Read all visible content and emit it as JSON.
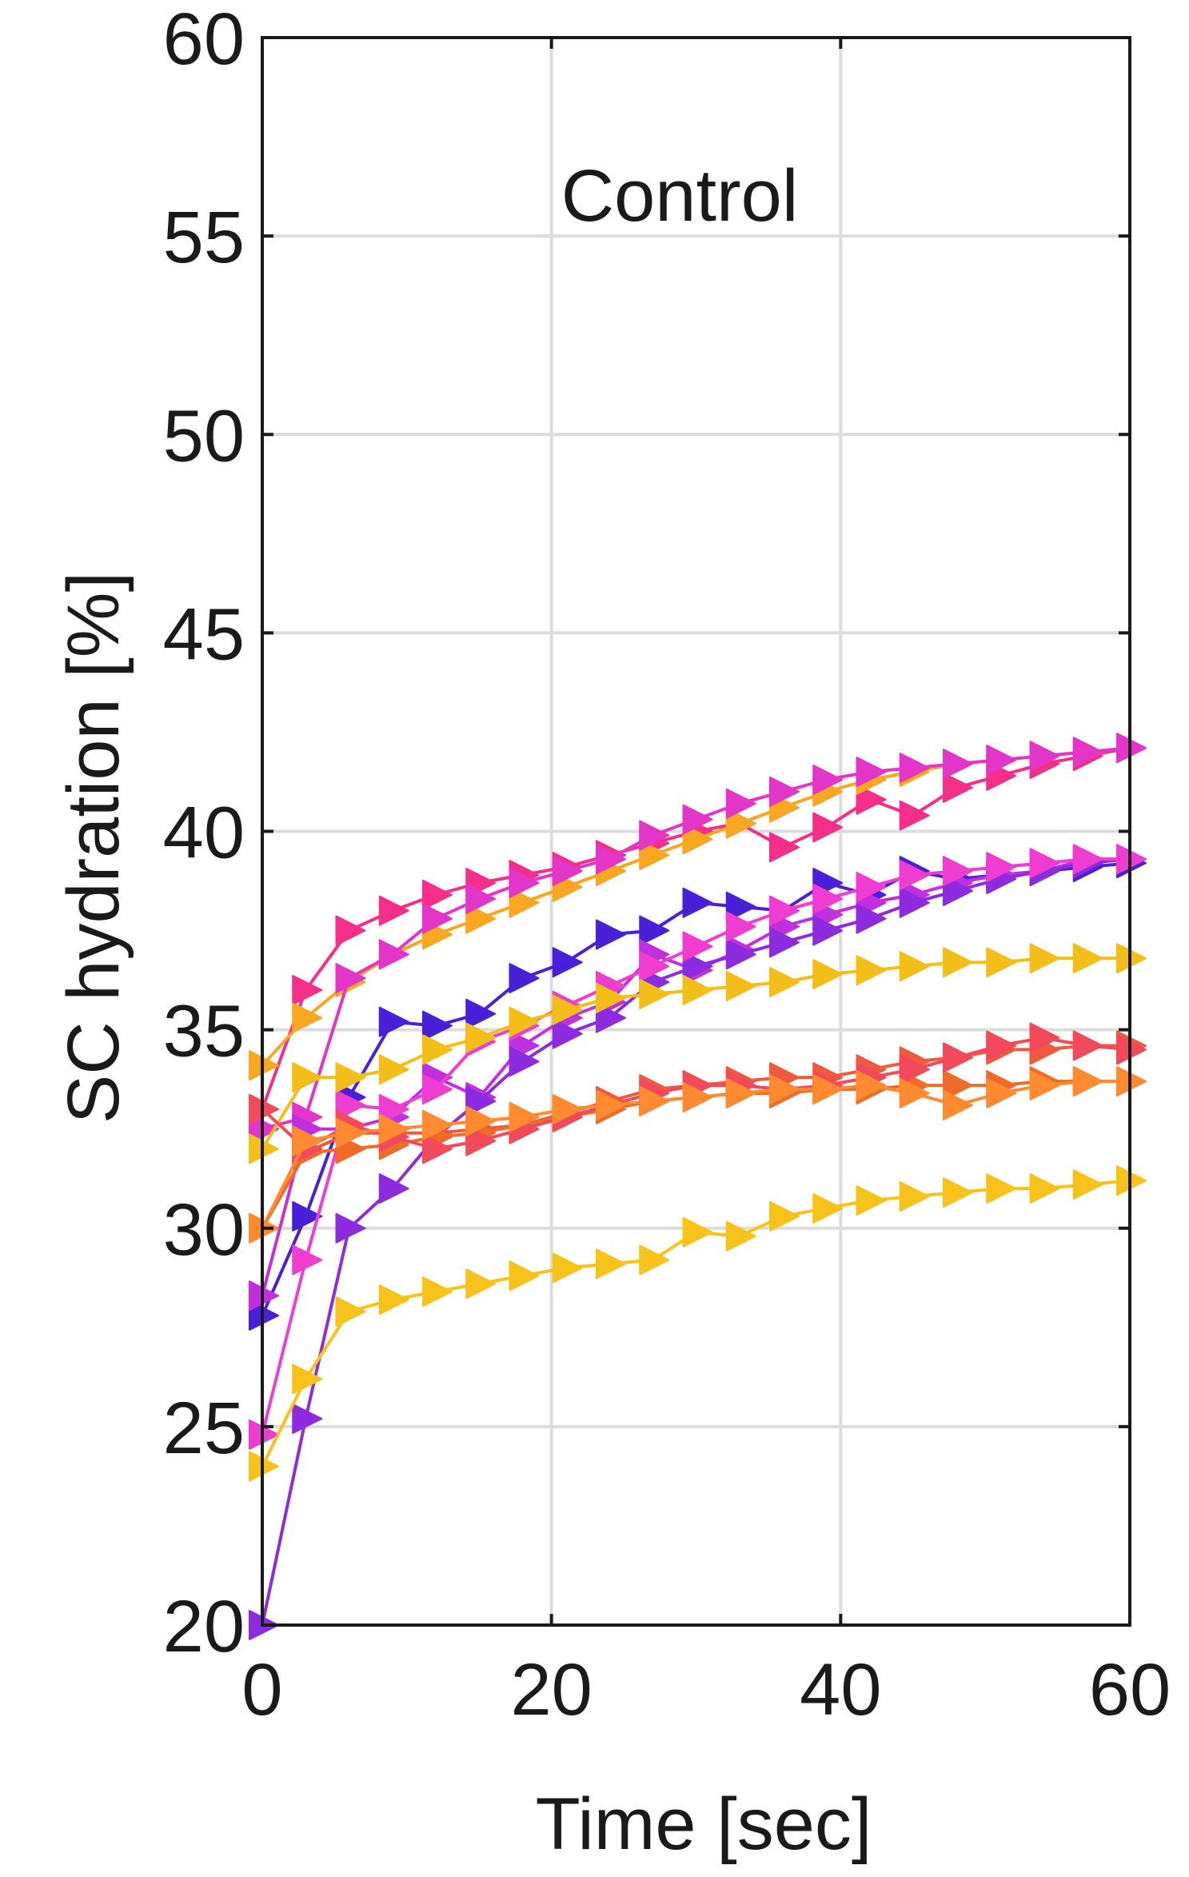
{
  "chart_data": {
    "type": "line",
    "annotation": "Control",
    "xlabel": "Time [sec]",
    "ylabel": "SC hydration [%]",
    "xlim": [
      0,
      60
    ],
    "ylim": [
      20,
      60
    ],
    "xticks": [
      0,
      20,
      40,
      60
    ],
    "yticks": [
      20,
      25,
      30,
      35,
      40,
      45,
      50,
      55,
      60
    ],
    "x_tick_labels": [
      "0",
      "20",
      "40",
      "60"
    ],
    "y_tick_labels": [
      "20",
      "25",
      "30",
      "35",
      "40",
      "45",
      "50",
      "55",
      "60"
    ],
    "grid": true,
    "marker": "triangle-right",
    "x": [
      0,
      3,
      6,
      9,
      12,
      15,
      18,
      21,
      24,
      27,
      30,
      33,
      36,
      39,
      42,
      45,
      48,
      51,
      54,
      57,
      60
    ],
    "series": [
      {
        "color": "#F52E8A",
        "values": [
          33.0,
          36.0,
          37.5,
          38.0,
          38.4,
          38.7,
          38.9,
          39.1,
          39.4,
          39.7,
          40.0,
          40.2,
          39.6,
          40.1,
          40.8,
          40.4,
          41.1,
          41.4,
          41.7,
          41.9,
          42.1
        ]
      },
      {
        "color": "#F9A620",
        "values": [
          34.1,
          35.3,
          36.2,
          36.9,
          37.4,
          37.8,
          38.2,
          38.6,
          39.0,
          39.4,
          39.8,
          40.2,
          40.6,
          41.0,
          41.3,
          41.5,
          41.7,
          41.8,
          41.9,
          42.0,
          42.1
        ]
      },
      {
        "color": "#E335C8",
        "values": [
          32.5,
          32.8,
          36.3,
          36.9,
          37.8,
          38.3,
          38.7,
          39.0,
          39.3,
          39.9,
          40.3,
          40.7,
          41.0,
          41.3,
          41.5,
          41.6,
          41.7,
          41.8,
          41.9,
          42.0,
          42.1
        ]
      },
      {
        "color": "#4A1FD8",
        "values": [
          27.8,
          30.3,
          33.3,
          35.2,
          35.1,
          35.4,
          36.3,
          36.7,
          37.4,
          37.5,
          38.2,
          38.1,
          38.0,
          38.7,
          38.4,
          39.0,
          38.8,
          38.9,
          39.0,
          39.1,
          39.2
        ]
      },
      {
        "color": "#C12FE0",
        "values": [
          28.3,
          32.5,
          32.5,
          32.8,
          33.8,
          33.3,
          34.6,
          35.3,
          35.7,
          36.9,
          36.5,
          37.0,
          37.6,
          37.9,
          38.2,
          38.4,
          38.7,
          38.9,
          39.0,
          39.3,
          39.3
        ]
      },
      {
        "color": "#8E2BDE",
        "values": [
          20.0,
          25.2,
          30.0,
          31.0,
          32.3,
          33.2,
          34.2,
          34.9,
          35.3,
          36.2,
          36.6,
          36.9,
          37.2,
          37.5,
          37.8,
          38.2,
          38.5,
          38.8,
          39.0,
          39.2,
          39.3
        ]
      },
      {
        "color": "#EE3DD0",
        "values": [
          24.8,
          29.2,
          33.1,
          33.0,
          33.5,
          34.7,
          35.1,
          35.6,
          36.1,
          36.6,
          37.1,
          37.6,
          38.0,
          38.3,
          38.6,
          38.9,
          39.0,
          39.1,
          39.2,
          39.3,
          39.3
        ]
      },
      {
        "color": "#F3BE18",
        "values": [
          32.0,
          33.8,
          33.8,
          34.0,
          34.5,
          34.8,
          35.2,
          35.5,
          35.8,
          35.9,
          36.0,
          36.1,
          36.2,
          36.4,
          36.5,
          36.6,
          36.7,
          36.7,
          36.8,
          36.8,
          36.8
        ]
      },
      {
        "color": "#F7C21A",
        "values": [
          24.0,
          26.2,
          27.9,
          28.2,
          28.4,
          28.6,
          28.8,
          29.0,
          29.1,
          29.2,
          29.9,
          29.8,
          30.3,
          30.5,
          30.7,
          30.8,
          30.9,
          31.0,
          31.0,
          31.1,
          31.2
        ]
      },
      {
        "color": "#F05A3C",
        "values": [
          30.0,
          31.9,
          32.4,
          32.4,
          32.4,
          32.5,
          32.6,
          32.9,
          33.2,
          33.5,
          33.6,
          33.7,
          33.8,
          33.8,
          34.0,
          34.2,
          34.3,
          34.5,
          34.5,
          34.6,
          34.6
        ]
      },
      {
        "color": "#F06A28",
        "values": [
          30.0,
          31.9,
          32.0,
          32.1,
          32.3,
          32.4,
          32.6,
          32.8,
          33.0,
          33.2,
          33.3,
          33.4,
          33.4,
          33.5,
          33.5,
          33.6,
          33.6,
          33.6,
          33.7,
          33.7,
          33.7
        ]
      },
      {
        "color": "#F24A5A",
        "values": [
          33.0,
          32.0,
          32.6,
          32.3,
          32.0,
          32.2,
          32.5,
          32.8,
          33.1,
          33.4,
          33.6,
          33.6,
          33.5,
          33.6,
          33.8,
          34.0,
          34.3,
          34.6,
          34.8,
          34.6,
          34.5
        ]
      },
      {
        "color": "#FF8A30",
        "values": [
          30.0,
          32.2,
          32.4,
          32.5,
          32.6,
          32.7,
          32.8,
          33.0,
          33.1,
          33.2,
          33.3,
          33.4,
          33.5,
          33.5,
          33.6,
          33.4,
          33.1,
          33.4,
          33.6,
          33.7,
          33.7
        ]
      }
    ]
  }
}
